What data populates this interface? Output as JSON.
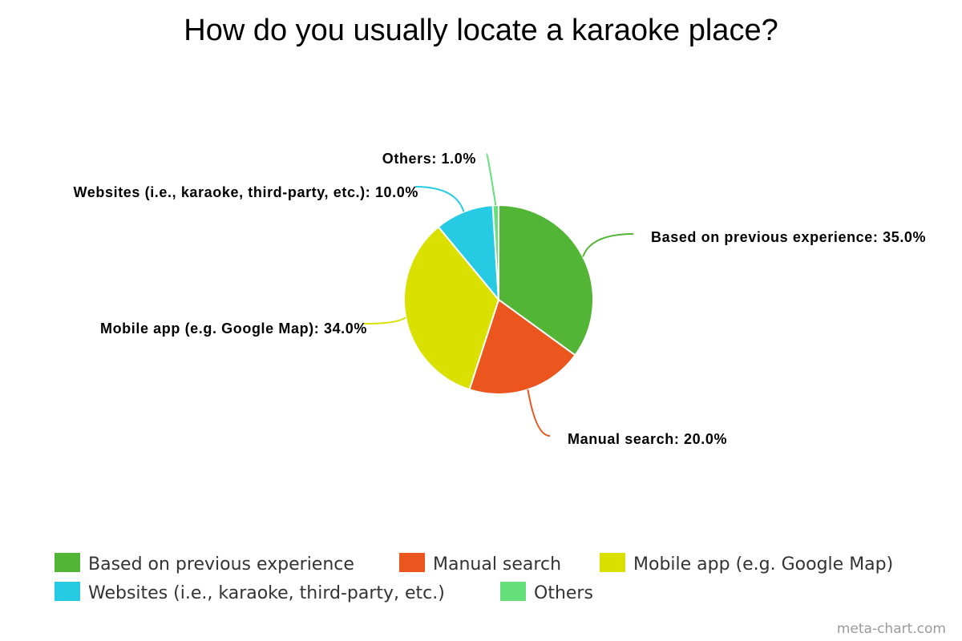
{
  "chart_data": {
    "type": "pie",
    "title": "How do you usually locate a karaoke place?",
    "slices": [
      {
        "name": "Based on previous experience",
        "value": 35.0,
        "label": "Based on previous experience: 35.0%",
        "color": "#52b535"
      },
      {
        "name": "Manual search",
        "value": 20.0,
        "label": "Manual search: 20.0%",
        "color": "#ea561d"
      },
      {
        "name": "Mobile app (e.g. Google Map)",
        "value": 34.0,
        "label": "Mobile app (e.g. Google Map): 34.0%",
        "color": "#dae000"
      },
      {
        "name": "Websites (i.e., karaoke, third-party, etc.)",
        "value": 10.0,
        "label": "Websites (i.e., karaoke, third-party, etc.): 10.0%",
        "color": "#26cbe3"
      },
      {
        "name": "Others",
        "value": 1.0,
        "label": "Others: 1.0%",
        "color": "#66e07a"
      }
    ],
    "legend_position": "bottom"
  },
  "credit": "meta-chart.com"
}
